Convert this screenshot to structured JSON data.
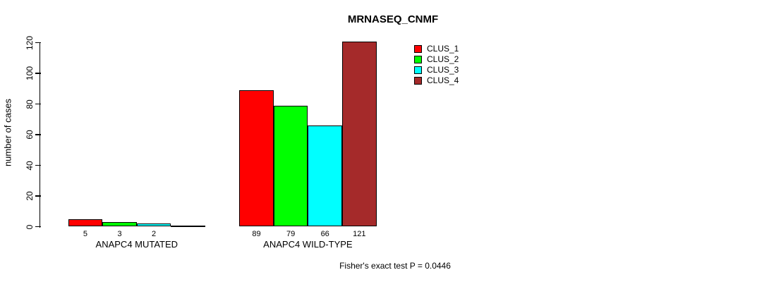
{
  "chart_data": {
    "type": "bar",
    "title": "MRNASEQ_CNMF",
    "ylabel": "number of cases",
    "xlabel": "",
    "ylim": [
      0,
      120
    ],
    "yticks": [
      0,
      20,
      40,
      60,
      80,
      100,
      120
    ],
    "categories": [
      "ANAPC4 MUTATED",
      "ANAPC4 WILD-TYPE"
    ],
    "series": [
      {
        "name": "CLUS_1",
        "color": "#ff0000",
        "values": [
          5,
          89
        ]
      },
      {
        "name": "CLUS_2",
        "color": "#00ff00",
        "values": [
          3,
          79
        ]
      },
      {
        "name": "CLUS_3",
        "color": "#00ffff",
        "values": [
          2,
          66
        ]
      },
      {
        "name": "CLUS_4",
        "color": "#a52a2a",
        "values": [
          0,
          121
        ]
      }
    ],
    "bar_value_labels": [
      [
        "5",
        "3",
        "2",
        ""
      ],
      [
        "89",
        "79",
        "66",
        "121"
      ]
    ],
    "annotation": "Fisher's exact test P = 0.0446",
    "legend_position": "top-right-inside",
    "grid": false,
    "background_color": "#ffffff",
    "text_color": "#000000"
  }
}
